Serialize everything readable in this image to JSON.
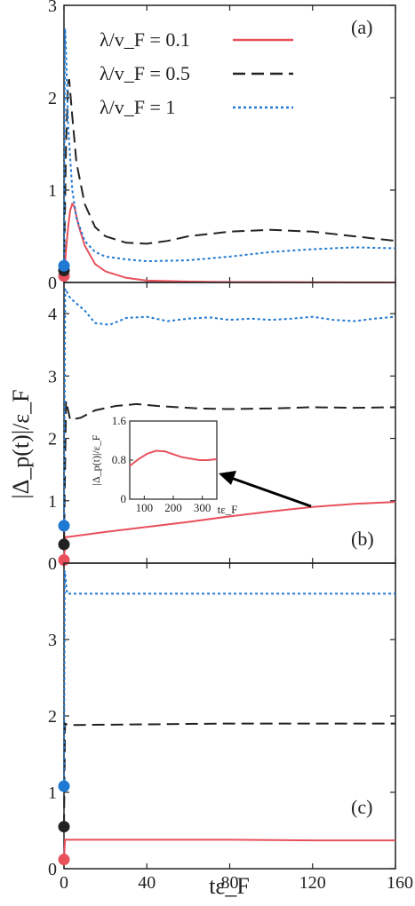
{
  "figure": {
    "ylabel": "|Δ_p(t)|/ε_F",
    "xlabel": "tε_F",
    "xlim": [
      0,
      160
    ],
    "xticks": [
      0,
      40,
      80,
      120,
      160
    ],
    "xtick_labels": [
      "0",
      "40",
      "80",
      "120",
      "160"
    ]
  },
  "legend": {
    "entries": [
      {
        "label": "λ/v_F = 0.1",
        "color": "#e8505b",
        "dash": "solid"
      },
      {
        "label": "λ/v_F = 0.5",
        "color": "#222222",
        "dash": "dashed"
      },
      {
        "label": "λ/v_F = 1",
        "color": "#1f78d1",
        "dash": "dotted"
      }
    ]
  },
  "chart_data": [
    {
      "type": "line",
      "panel": "(a)",
      "xlim": [
        0,
        160
      ],
      "ylim": [
        0,
        3
      ],
      "yticks": [
        0,
        1,
        2,
        3
      ],
      "series": [
        {
          "name": "λ/v_F = 0.1",
          "color": "#e8505b",
          "dash": "solid",
          "points": [
            [
              0,
              0.07
            ],
            [
              1,
              0.35
            ],
            [
              2,
              0.6
            ],
            [
              3,
              0.78
            ],
            [
              4,
              0.85
            ],
            [
              5,
              0.82
            ],
            [
              7,
              0.62
            ],
            [
              10,
              0.4
            ],
            [
              15,
              0.2
            ],
            [
              20,
              0.12
            ],
            [
              30,
              0.05
            ],
            [
              40,
              0.02
            ],
            [
              60,
              0.01
            ],
            [
              80,
              0.005
            ],
            [
              120,
              0.002
            ],
            [
              160,
              0
            ]
          ],
          "marker": [
            0,
            0.07
          ]
        },
        {
          "name": "λ/v_F = 0.5",
          "color": "#222222",
          "dash": "dashed",
          "points": [
            [
              0,
              0.13
            ],
            [
              1,
              1.5
            ],
            [
              2,
              2.15
            ],
            [
              2.5,
              2.2
            ],
            [
              4,
              1.8
            ],
            [
              6,
              1.3
            ],
            [
              10,
              0.85
            ],
            [
              15,
              0.6
            ],
            [
              20,
              0.5
            ],
            [
              30,
              0.43
            ],
            [
              40,
              0.42
            ],
            [
              50,
              0.45
            ],
            [
              60,
              0.5
            ],
            [
              80,
              0.55
            ],
            [
              100,
              0.57
            ],
            [
              120,
              0.55
            ],
            [
              140,
              0.5
            ],
            [
              160,
              0.45
            ]
          ],
          "marker": [
            0,
            0.13
          ]
        },
        {
          "name": "λ/v_F = 1",
          "color": "#1f78d1",
          "dash": "dotted",
          "points": [
            [
              0,
              0.18
            ],
            [
              0.5,
              2.75
            ],
            [
              1,
              2.5
            ],
            [
              2,
              1.7
            ],
            [
              4,
              1.0
            ],
            [
              6,
              0.7
            ],
            [
              10,
              0.45
            ],
            [
              15,
              0.33
            ],
            [
              20,
              0.28
            ],
            [
              30,
              0.25
            ],
            [
              40,
              0.23
            ],
            [
              60,
              0.24
            ],
            [
              80,
              0.28
            ],
            [
              100,
              0.33
            ],
            [
              120,
              0.36
            ],
            [
              140,
              0.38
            ],
            [
              160,
              0.37
            ]
          ],
          "marker": [
            0,
            0.18
          ]
        }
      ]
    },
    {
      "type": "line",
      "panel": "(b)",
      "xlim": [
        0,
        160
      ],
      "ylim": [
        0,
        4.5
      ],
      "yticks": [
        0,
        1,
        2,
        3,
        4
      ],
      "series": [
        {
          "name": "λ/v_F = 0.1",
          "color": "#e8505b",
          "dash": "solid",
          "points": [
            [
              0,
              0.05
            ],
            [
              0.8,
              0.42
            ],
            [
              2,
              0.42
            ],
            [
              20,
              0.5
            ],
            [
              40,
              0.58
            ],
            [
              60,
              0.66
            ],
            [
              80,
              0.75
            ],
            [
              100,
              0.83
            ],
            [
              120,
              0.9
            ],
            [
              140,
              0.95
            ],
            [
              160,
              0.98
            ]
          ],
          "marker": [
            0,
            0.05
          ]
        },
        {
          "name": "λ/v_F = 0.5",
          "color": "#222222",
          "dash": "dashed",
          "points": [
            [
              0,
              0.3
            ],
            [
              1,
              2.6
            ],
            [
              3,
              2.3
            ],
            [
              8,
              2.33
            ],
            [
              15,
              2.45
            ],
            [
              25,
              2.52
            ],
            [
              35,
              2.55
            ],
            [
              45,
              2.52
            ],
            [
              55,
              2.5
            ],
            [
              65,
              2.48
            ],
            [
              80,
              2.47
            ],
            [
              100,
              2.48
            ],
            [
              120,
              2.5
            ],
            [
              140,
              2.49
            ],
            [
              160,
              2.5
            ]
          ],
          "marker": [
            0,
            0.3
          ]
        },
        {
          "name": "λ/v_F = 1",
          "color": "#1f78d1",
          "dash": "dotted",
          "points": [
            [
              0,
              0.6
            ],
            [
              0.6,
              4.4
            ],
            [
              3,
              4.25
            ],
            [
              10,
              4.05
            ],
            [
              15,
              3.85
            ],
            [
              22,
              3.82
            ],
            [
              30,
              3.93
            ],
            [
              40,
              3.95
            ],
            [
              50,
              3.88
            ],
            [
              60,
              3.92
            ],
            [
              70,
              3.94
            ],
            [
              80,
              3.9
            ],
            [
              90,
              3.92
            ],
            [
              100,
              3.9
            ],
            [
              110,
              3.92
            ],
            [
              120,
              3.95
            ],
            [
              130,
              3.9
            ],
            [
              140,
              3.88
            ],
            [
              150,
              3.92
            ],
            [
              160,
              3.95
            ]
          ],
          "marker": [
            0,
            0.6
          ]
        }
      ]
    },
    {
      "type": "line",
      "panel": "(c)",
      "xlim": [
        0,
        160
      ],
      "ylim": [
        0,
        4
      ],
      "yticks": [
        0,
        1,
        2,
        3
      ],
      "series": [
        {
          "name": "λ/v_F = 0.1",
          "color": "#e8505b",
          "dash": "solid",
          "points": [
            [
              0,
              0.12
            ],
            [
              0.5,
              0.38
            ],
            [
              10,
              0.38
            ],
            [
              80,
              0.38
            ],
            [
              120,
              0.37
            ],
            [
              160,
              0.37
            ]
          ],
          "marker": [
            0,
            0.12
          ]
        },
        {
          "name": "λ/v_F = 0.5",
          "color": "#222222",
          "dash": "dashed",
          "points": [
            [
              0,
              0.55
            ],
            [
              0.5,
              1.9
            ],
            [
              2,
              1.88
            ],
            [
              40,
              1.89
            ],
            [
              80,
              1.9
            ],
            [
              120,
              1.9
            ],
            [
              160,
              1.9
            ]
          ],
          "marker": [
            0,
            0.55
          ]
        },
        {
          "name": "λ/v_F = 1",
          "color": "#1f78d1",
          "dash": "dotted",
          "points": [
            [
              0,
              1.08
            ],
            [
              0.4,
              3.9
            ],
            [
              1.5,
              3.6
            ],
            [
              40,
              3.6
            ],
            [
              80,
              3.6
            ],
            [
              120,
              3.6
            ],
            [
              160,
              3.6
            ]
          ],
          "marker": [
            0,
            1.08
          ]
        }
      ]
    },
    {
      "type": "line",
      "panel": "inset-b",
      "xlabel": "tε_F",
      "ylabel": "|Δ_p(t)|/ε_F",
      "xlim": [
        50,
        350
      ],
      "ylim": [
        0,
        1.6
      ],
      "xticks": [
        100,
        200,
        300
      ],
      "yticks": [
        0,
        0.8,
        1.6
      ],
      "ytick_labels": [
        "0",
        "0.8",
        "1.6"
      ],
      "series": [
        {
          "name": "λ/v_F = 0.1",
          "color": "#e8505b",
          "dash": "solid",
          "points": [
            [
              50,
              0.68
            ],
            [
              80,
              0.82
            ],
            [
              110,
              0.93
            ],
            [
              140,
              0.99
            ],
            [
              170,
              0.98
            ],
            [
              200,
              0.92
            ],
            [
              230,
              0.86
            ],
            [
              260,
              0.83
            ],
            [
              290,
              0.8
            ],
            [
              320,
              0.8
            ],
            [
              350,
              0.82
            ]
          ]
        }
      ]
    }
  ]
}
